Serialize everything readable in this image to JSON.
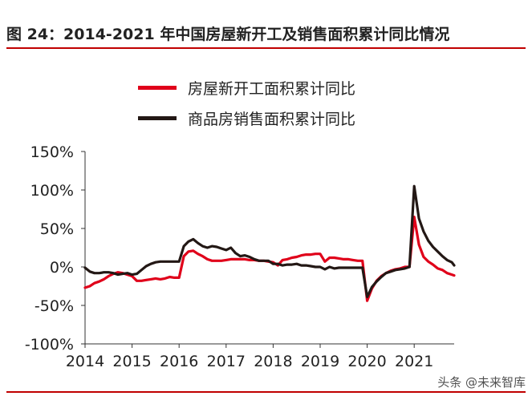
{
  "title": "图 24：2014-2021 年中国房屋新开工及销售面积累计同比情况",
  "watermark": "头条 @未来智库",
  "colors": {
    "accent": "#c00000",
    "series_1": "#e0001a",
    "series_2": "#231815"
  },
  "chart_data": {
    "type": "line",
    "title": "图 24：2014-2021 年中国房屋新开工及销售面积累计同比情况",
    "xlabel": "",
    "ylabel": "",
    "x_ticks": [
      "2014",
      "2015",
      "2016",
      "2017",
      "2018",
      "2019",
      "2020",
      "2021"
    ],
    "y_ticks": [
      "150%",
      "100%",
      "50%",
      "0%",
      "-50%",
      "-100%"
    ],
    "ylim": [
      -100,
      150
    ],
    "xlim": [
      2014.0,
      2021.85
    ],
    "grid": false,
    "legend_position": "top-center",
    "series": [
      {
        "name": "房屋新开工面积累计同比",
        "color": "#e0001a",
        "points": [
          [
            2014.0,
            -27
          ],
          [
            2014.1,
            -25
          ],
          [
            2014.2,
            -21
          ],
          [
            2014.3,
            -19
          ],
          [
            2014.4,
            -16
          ],
          [
            2014.5,
            -12
          ],
          [
            2014.6,
            -9
          ],
          [
            2014.7,
            -7
          ],
          [
            2014.8,
            -8
          ],
          [
            2014.9,
            -10
          ],
          [
            2015.0,
            -12
          ],
          [
            2015.1,
            -18
          ],
          [
            2015.2,
            -18
          ],
          [
            2015.3,
            -17
          ],
          [
            2015.4,
            -16
          ],
          [
            2015.5,
            -15
          ],
          [
            2015.6,
            -16
          ],
          [
            2015.7,
            -15
          ],
          [
            2015.8,
            -13
          ],
          [
            2015.9,
            -14
          ],
          [
            2016.0,
            -14
          ],
          [
            2016.1,
            14
          ],
          [
            2016.2,
            20
          ],
          [
            2016.3,
            21
          ],
          [
            2016.4,
            17
          ],
          [
            2016.5,
            14
          ],
          [
            2016.6,
            10
          ],
          [
            2016.7,
            8
          ],
          [
            2016.8,
            8
          ],
          [
            2016.9,
            8
          ],
          [
            2017.0,
            9
          ],
          [
            2017.1,
            10
          ],
          [
            2017.2,
            10
          ],
          [
            2017.3,
            10
          ],
          [
            2017.4,
            10
          ],
          [
            2017.5,
            9
          ],
          [
            2017.6,
            9
          ],
          [
            2017.7,
            8
          ],
          [
            2017.8,
            8
          ],
          [
            2017.9,
            7
          ],
          [
            2018.0,
            6
          ],
          [
            2018.1,
            2
          ],
          [
            2018.2,
            9
          ],
          [
            2018.3,
            10
          ],
          [
            2018.4,
            12
          ],
          [
            2018.5,
            13
          ],
          [
            2018.6,
            15
          ],
          [
            2018.7,
            16
          ],
          [
            2018.8,
            16
          ],
          [
            2018.9,
            17
          ],
          [
            2019.0,
            17
          ],
          [
            2019.1,
            7
          ],
          [
            2019.2,
            12
          ],
          [
            2019.3,
            12
          ],
          [
            2019.4,
            11
          ],
          [
            2019.5,
            10
          ],
          [
            2019.6,
            10
          ],
          [
            2019.7,
            9
          ],
          [
            2019.8,
            8
          ],
          [
            2019.9,
            8
          ],
          [
            2020.0,
            -44
          ],
          [
            2020.1,
            -28
          ],
          [
            2020.2,
            -18
          ],
          [
            2020.3,
            -12
          ],
          [
            2020.4,
            -8
          ],
          [
            2020.5,
            -5
          ],
          [
            2020.6,
            -3
          ],
          [
            2020.7,
            -2
          ],
          [
            2020.8,
            0
          ],
          [
            2020.9,
            0
          ],
          [
            2021.0,
            65
          ],
          [
            2021.1,
            29
          ],
          [
            2021.2,
            13
          ],
          [
            2021.3,
            7
          ],
          [
            2021.4,
            3
          ],
          [
            2021.5,
            -2
          ],
          [
            2021.6,
            -4
          ],
          [
            2021.7,
            -8
          ],
          [
            2021.8,
            -10
          ],
          [
            2021.85,
            -11
          ]
        ]
      },
      {
        "name": "商品房销售面积累计同比",
        "color": "#231815",
        "points": [
          [
            2014.0,
            -1
          ],
          [
            2014.1,
            -6
          ],
          [
            2014.2,
            -8
          ],
          [
            2014.3,
            -8
          ],
          [
            2014.4,
            -7
          ],
          [
            2014.5,
            -7
          ],
          [
            2014.6,
            -8
          ],
          [
            2014.7,
            -10
          ],
          [
            2014.8,
            -9
          ],
          [
            2014.9,
            -8
          ],
          [
            2015.0,
            -10
          ],
          [
            2015.1,
            -9
          ],
          [
            2015.2,
            -4
          ],
          [
            2015.3,
            1
          ],
          [
            2015.4,
            4
          ],
          [
            2015.5,
            6
          ],
          [
            2015.6,
            7
          ],
          [
            2015.7,
            7
          ],
          [
            2015.8,
            7
          ],
          [
            2015.9,
            7
          ],
          [
            2016.0,
            7
          ],
          [
            2016.1,
            27
          ],
          [
            2016.2,
            33
          ],
          [
            2016.3,
            36
          ],
          [
            2016.4,
            31
          ],
          [
            2016.5,
            27
          ],
          [
            2016.6,
            25
          ],
          [
            2016.7,
            27
          ],
          [
            2016.8,
            26
          ],
          [
            2016.9,
            24
          ],
          [
            2017.0,
            22
          ],
          [
            2017.1,
            25
          ],
          [
            2017.2,
            18
          ],
          [
            2017.3,
            14
          ],
          [
            2017.4,
            15
          ],
          [
            2017.5,
            13
          ],
          [
            2017.6,
            10
          ],
          [
            2017.7,
            8
          ],
          [
            2017.8,
            8
          ],
          [
            2017.9,
            8
          ],
          [
            2018.0,
            4
          ],
          [
            2018.1,
            4
          ],
          [
            2018.2,
            2
          ],
          [
            2018.3,
            3
          ],
          [
            2018.4,
            3
          ],
          [
            2018.5,
            4
          ],
          [
            2018.6,
            2
          ],
          [
            2018.7,
            2
          ],
          [
            2018.8,
            1
          ],
          [
            2018.9,
            0
          ],
          [
            2019.0,
            0
          ],
          [
            2019.1,
            -3
          ],
          [
            2019.2,
            0
          ],
          [
            2019.3,
            -2
          ],
          [
            2019.4,
            -1
          ],
          [
            2019.5,
            -1
          ],
          [
            2019.6,
            -1
          ],
          [
            2019.7,
            -1
          ],
          [
            2019.8,
            -1
          ],
          [
            2019.9,
            -1
          ],
          [
            2020.0,
            -39
          ],
          [
            2020.1,
            -26
          ],
          [
            2020.2,
            -19
          ],
          [
            2020.3,
            -13
          ],
          [
            2020.4,
            -8
          ],
          [
            2020.5,
            -6
          ],
          [
            2020.6,
            -4
          ],
          [
            2020.7,
            -3
          ],
          [
            2020.8,
            -2
          ],
          [
            2020.9,
            0
          ],
          [
            2021.0,
            105
          ],
          [
            2021.1,
            63
          ],
          [
            2021.2,
            46
          ],
          [
            2021.3,
            34
          ],
          [
            2021.4,
            26
          ],
          [
            2021.5,
            20
          ],
          [
            2021.6,
            14
          ],
          [
            2021.7,
            9
          ],
          [
            2021.8,
            6
          ],
          [
            2021.85,
            2
          ]
        ]
      }
    ]
  }
}
